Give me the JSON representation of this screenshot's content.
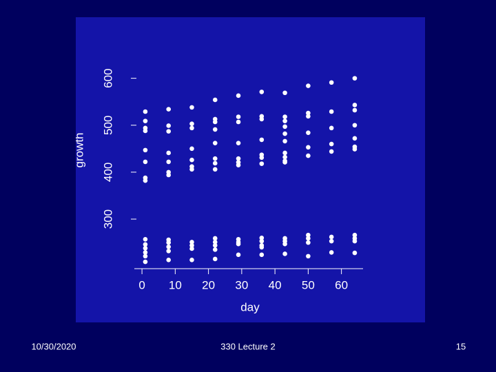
{
  "chart_data": {
    "type": "scatter",
    "xlabel": "day",
    "ylabel": "growth",
    "color": "#ffffff",
    "xlim": [
      -2.3,
      66.5
    ],
    "ylim": [
      190,
      620
    ],
    "xticks": [
      0,
      10,
      20,
      30,
      40,
      50,
      60
    ],
    "yticks": [
      300,
      400,
      500,
      600
    ],
    "x": [
      1,
      1,
      1,
      1,
      1,
      1,
      1,
      1,
      1,
      1,
      1,
      1,
      1,
      1,
      8,
      8,
      8,
      8,
      8,
      8,
      8,
      8,
      8,
      8,
      8,
      8,
      15,
      15,
      15,
      15,
      15,
      15,
      15,
      15,
      15,
      15,
      15,
      22,
      22,
      22,
      22,
      22,
      22,
      22,
      22,
      22,
      22,
      22,
      22,
      22,
      29,
      29,
      29,
      29,
      29,
      29,
      29,
      29,
      29,
      29,
      29,
      36,
      36,
      36,
      36,
      36,
      36,
      36,
      36,
      36,
      36,
      36,
      36,
      43,
      43,
      43,
      43,
      43,
      43,
      43,
      43,
      43,
      43,
      43,
      43,
      43,
      43,
      50,
      50,
      50,
      50,
      50,
      50,
      50,
      50,
      50,
      50,
      57,
      57,
      57,
      57,
      57,
      57,
      57,
      57,
      64,
      64,
      64,
      64,
      64,
      64,
      64,
      64,
      64,
      64,
      64
    ],
    "values": [
      529,
      509,
      494,
      488,
      447,
      422,
      388,
      382,
      257,
      246,
      238,
      229,
      221,
      209,
      534,
      499,
      487,
      441,
      422,
      400,
      394,
      256,
      250,
      241,
      232,
      213,
      538,
      503,
      494,
      450,
      426,
      412,
      406,
      251,
      244,
      237,
      213,
      554,
      513,
      507,
      491,
      462,
      429,
      419,
      406,
      259,
      251,
      244,
      235,
      215,
      563,
      518,
      507,
      462,
      429,
      421,
      415,
      257,
      251,
      247,
      224,
      571,
      519,
      513,
      469,
      437,
      431,
      418,
      260,
      253,
      244,
      240,
      224,
      569,
      518,
      509,
      497,
      482,
      466,
      441,
      432,
      424,
      421,
      259,
      253,
      247,
      226,
      584,
      526,
      519,
      484,
      453,
      435,
      266,
      259,
      250,
      221,
      591,
      529,
      494,
      460,
      444,
      262,
      253,
      229,
      600,
      543,
      532,
      500,
      472,
      454,
      449,
      266,
      259,
      253,
      228
    ]
  },
  "footer": {
    "date": "10/30/2020",
    "title": "330 Lecture 2",
    "page": "15"
  }
}
